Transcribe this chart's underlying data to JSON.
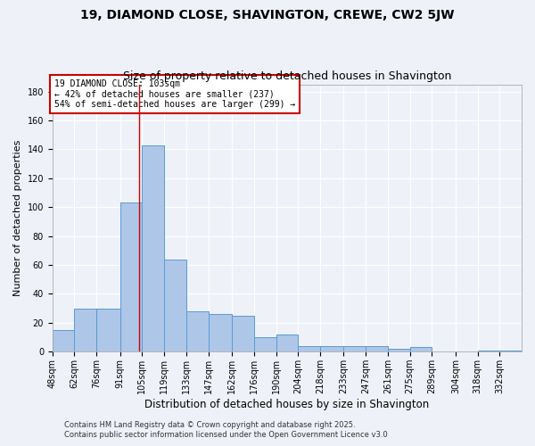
{
  "title1": "19, DIAMOND CLOSE, SHAVINGTON, CREWE, CW2 5JW",
  "title2": "Size of property relative to detached houses in Shavington",
  "xlabel": "Distribution of detached houses by size in Shavington",
  "ylabel": "Number of detached properties",
  "bin_labels": [
    "48sqm",
    "62sqm",
    "76sqm",
    "91sqm",
    "105sqm",
    "119sqm",
    "133sqm",
    "147sqm",
    "162sqm",
    "176sqm",
    "190sqm",
    "204sqm",
    "218sqm",
    "233sqm",
    "247sqm",
    "261sqm",
    "275sqm",
    "289sqm",
    "304sqm",
    "318sqm",
    "332sqm"
  ],
  "bin_edges": [
    48,
    62,
    76,
    91,
    105,
    119,
    133,
    147,
    162,
    176,
    190,
    204,
    218,
    233,
    247,
    261,
    275,
    289,
    304,
    318,
    332,
    346
  ],
  "counts": [
    15,
    30,
    30,
    103,
    143,
    64,
    28,
    26,
    25,
    10,
    12,
    4,
    4,
    4,
    4,
    2,
    3,
    0,
    0,
    1,
    1
  ],
  "bar_color": "#aec6e8",
  "bar_edge_color": "#5b9bd5",
  "property_size": 103,
  "red_line_color": "#cc0000",
  "annotation_text": "19 DIAMOND CLOSE: 103sqm\n← 42% of detached houses are smaller (237)\n54% of semi-detached houses are larger (299) →",
  "annotation_box_color": "#ffffff",
  "annotation_box_edge_color": "#cc0000",
  "ylim": [
    0,
    185
  ],
  "yticks": [
    0,
    20,
    40,
    60,
    80,
    100,
    120,
    140,
    160,
    180
  ],
  "footer1": "Contains HM Land Registry data © Crown copyright and database right 2025.",
  "footer2": "Contains public sector information licensed under the Open Government Licence v3.0",
  "background_color": "#eef2f8",
  "grid_color": "#ffffff",
  "title1_fontsize": 10,
  "title2_fontsize": 9,
  "tick_fontsize": 7,
  "ylabel_fontsize": 8,
  "xlabel_fontsize": 8.5,
  "footer_fontsize": 6,
  "ann_fontsize": 7
}
